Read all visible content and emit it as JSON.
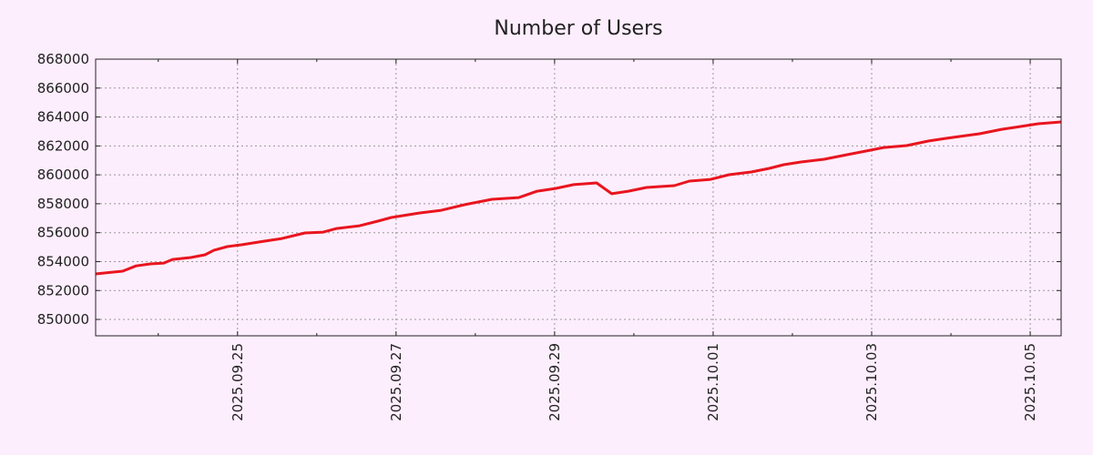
{
  "chart_data": {
    "type": "line",
    "title": "Number of Users",
    "xlabel": "",
    "ylabel": "",
    "x_unit": "days since 2025.09.23 00:00",
    "xlim": [
      0.21,
      12.39
    ],
    "ylim": [
      848870,
      868000
    ],
    "grid": true,
    "legend": "none",
    "line_color": "#e8151f",
    "background": "#fdeefd",
    "yticks": [
      850000,
      852000,
      854000,
      856000,
      858000,
      860000,
      862000,
      864000,
      866000,
      868000
    ],
    "ytick_labels": [
      "850000",
      "852000",
      "854000",
      "856000",
      "858000",
      "860000",
      "862000",
      "864000",
      "866000",
      "868000"
    ],
    "xticks": [
      2,
      4,
      6,
      8,
      10,
      12
    ],
    "xtick_labels": [
      "2025.09.25",
      "2025.09.27",
      "2025.09.29",
      "2025.10.01",
      "2025.10.03",
      "2025.10.05"
    ],
    "xminor_ticks": [
      1,
      3,
      5,
      7,
      9,
      11
    ],
    "series": [
      {
        "name": "Number of Users",
        "x": [
          0.21,
          0.55,
          0.72,
          0.9,
          1.07,
          1.18,
          1.41,
          1.59,
          1.7,
          1.87,
          2.05,
          2.33,
          2.56,
          2.85,
          3.08,
          3.25,
          3.54,
          3.77,
          3.94,
          4.29,
          4.57,
          4.86,
          5.21,
          5.55,
          5.78,
          6.01,
          6.24,
          6.53,
          6.72,
          6.93,
          7.16,
          7.51,
          7.7,
          7.97,
          8.2,
          8.48,
          8.71,
          8.89,
          9.11,
          9.4,
          9.69,
          9.92,
          10.15,
          10.44,
          10.72,
          10.95,
          11.18,
          11.36,
          11.64,
          11.87,
          12.1,
          12.39
        ],
        "y": [
          853150,
          853340,
          853700,
          853840,
          853900,
          854150,
          854280,
          854470,
          854780,
          855040,
          855160,
          855410,
          855600,
          855980,
          856040,
          856290,
          856480,
          856800,
          857050,
          857360,
          857550,
          857930,
          858310,
          858430,
          858870,
          859060,
          859320,
          859440,
          858690,
          858870,
          859130,
          859250,
          859570,
          859690,
          860010,
          860200,
          860450,
          860700,
          860890,
          861080,
          861390,
          861640,
          861890,
          862020,
          862340,
          862530,
          862710,
          862840,
          863150,
          863340,
          863530,
          863660
        ]
      }
    ]
  }
}
